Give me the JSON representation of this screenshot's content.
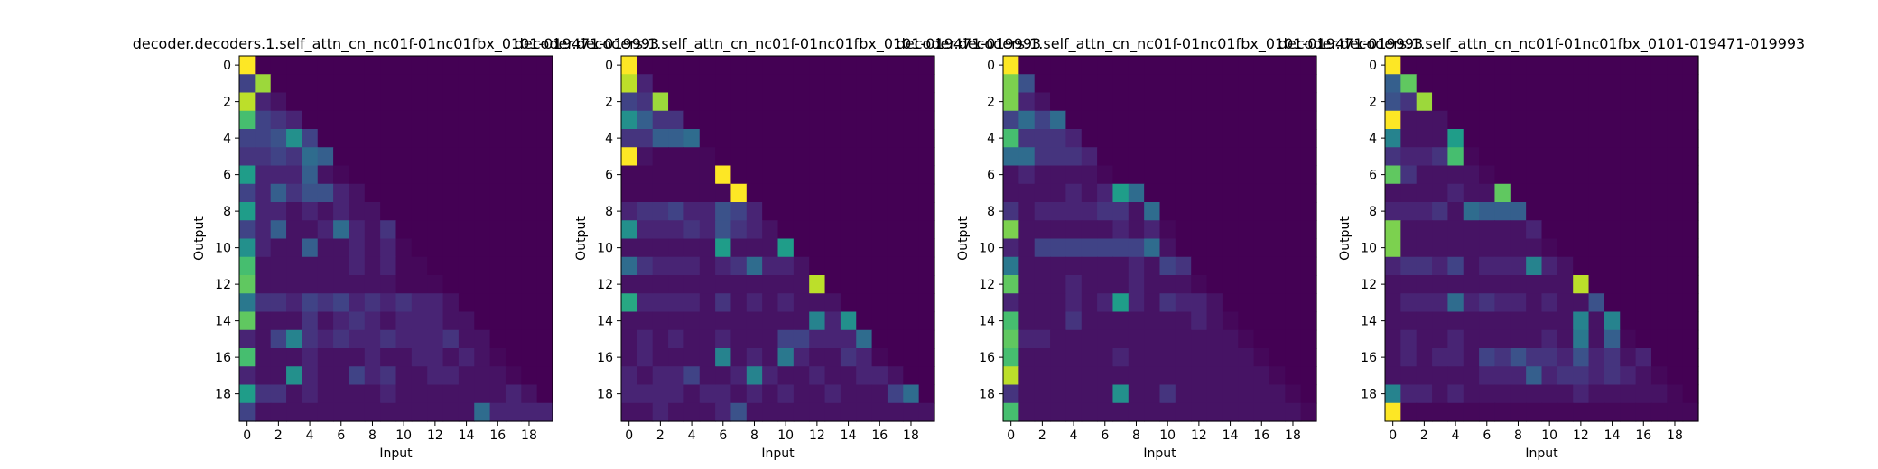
{
  "figure": {
    "colormap": "viridis",
    "background": "#ffffff"
  },
  "chart_data": [
    {
      "type": "heatmap",
      "title": "decoder.decoders.1.self_attn_cn_nc01f-01nc01fbx_0101-019471-019993",
      "xlabel": "Input",
      "ylabel": "Output",
      "x_ticks": [
        "0",
        "2",
        "4",
        "6",
        "8",
        "10",
        "12",
        "14",
        "16",
        "18"
      ],
      "y_ticks": [
        "0",
        "2",
        "4",
        "6",
        "8",
        "10",
        "12",
        "14",
        "16",
        "18"
      ],
      "xlim": [
        -0.5,
        19.5
      ],
      "ylim": [
        19.5,
        -0.5
      ],
      "value_range": [
        0,
        1
      ],
      "grid": false,
      "values": [
        [
          1.0
        ],
        [
          0.2,
          0.85
        ],
        [
          0.9,
          0.1,
          0.05
        ],
        [
          0.7,
          0.2,
          0.15,
          0.1
        ],
        [
          0.2,
          0.2,
          0.25,
          0.5,
          0.2
        ],
        [
          0.15,
          0.15,
          0.2,
          0.15,
          0.35,
          0.3
        ],
        [
          0.55,
          0.1,
          0.1,
          0.1,
          0.3,
          0.05,
          0.02
        ],
        [
          0.2,
          0.1,
          0.3,
          0.15,
          0.25,
          0.25,
          0.1,
          0.05
        ],
        [
          0.55,
          0.1,
          0.1,
          0.05,
          0.1,
          0.05,
          0.1,
          0.05,
          0.05
        ],
        [
          0.2,
          0.1,
          0.3,
          0.05,
          0.05,
          0.1,
          0.35,
          0.1,
          0.05,
          0.15
        ],
        [
          0.5,
          0.1,
          0.05,
          0.05,
          0.3,
          0.05,
          0.05,
          0.1,
          0.05,
          0.1,
          0.02
        ],
        [
          0.7,
          0.05,
          0.05,
          0.05,
          0.05,
          0.05,
          0.05,
          0.1,
          0.05,
          0.1,
          0.02,
          0.02
        ],
        [
          0.75,
          0.05,
          0.05,
          0.05,
          0.05,
          0.05,
          0.05,
          0.05,
          0.05,
          0.05,
          0.02,
          0.02,
          0.02
        ],
        [
          0.4,
          0.15,
          0.15,
          0.1,
          0.2,
          0.15,
          0.2,
          0.1,
          0.15,
          0.1,
          0.15,
          0.1,
          0.1,
          0.05
        ],
        [
          0.75,
          0.05,
          0.05,
          0.05,
          0.15,
          0.05,
          0.1,
          0.15,
          0.1,
          0.05,
          0.1,
          0.1,
          0.1,
          0.05,
          0.05
        ],
        [
          0.1,
          0.05,
          0.2,
          0.45,
          0.15,
          0.1,
          0.15,
          0.1,
          0.1,
          0.15,
          0.1,
          0.1,
          0.1,
          0.15,
          0.05,
          0.05
        ],
        [
          0.7,
          0.05,
          0.05,
          0.05,
          0.1,
          0.05,
          0.05,
          0.05,
          0.1,
          0.05,
          0.05,
          0.1,
          0.1,
          0.05,
          0.1,
          0.05,
          0.02
        ],
        [
          0.1,
          0.05,
          0.05,
          0.5,
          0.1,
          0.05,
          0.05,
          0.2,
          0.1,
          0.15,
          0.05,
          0.05,
          0.1,
          0.1,
          0.05,
          0.05,
          0.05,
          0.02
        ],
        [
          0.55,
          0.15,
          0.15,
          0.05,
          0.1,
          0.05,
          0.05,
          0.05,
          0.05,
          0.1,
          0.05,
          0.05,
          0.05,
          0.05,
          0.05,
          0.05,
          0.05,
          0.1,
          0.05
        ],
        [
          0.2,
          0.05,
          0.05,
          0.05,
          0.05,
          0.05,
          0.05,
          0.05,
          0.05,
          0.05,
          0.05,
          0.05,
          0.05,
          0.05,
          0.05,
          0.35,
          0.1,
          0.1,
          0.1,
          0.1
        ]
      ]
    },
    {
      "type": "heatmap",
      "title": "decoder.decoders.1.self_attn_cn_nc01f-01nc01fbx_0101-019471-019993",
      "xlabel": "Input",
      "ylabel": "Output",
      "x_ticks": [
        "0",
        "2",
        "4",
        "6",
        "8",
        "10",
        "12",
        "14",
        "16",
        "18"
      ],
      "y_ticks": [
        "0",
        "2",
        "4",
        "6",
        "8",
        "10",
        "12",
        "14",
        "16",
        "18"
      ],
      "xlim": [
        -0.5,
        19.5
      ],
      "ylim": [
        19.5,
        -0.5
      ],
      "value_range": [
        0,
        1
      ],
      "grid": false,
      "values": [
        [
          1.0
        ],
        [
          0.9,
          0.1
        ],
        [
          0.2,
          0.15,
          0.85
        ],
        [
          0.5,
          0.3,
          0.15,
          0.15
        ],
        [
          0.15,
          0.15,
          0.3,
          0.3,
          0.35
        ],
        [
          1.0,
          0.05,
          0.02,
          0.02,
          0.02,
          0.02
        ],
        [
          0.02,
          0.02,
          0.02,
          0.02,
          0.02,
          0.02,
          1.0
        ],
        [
          0.02,
          0.02,
          0.02,
          0.02,
          0.02,
          0.02,
          0.02,
          1.0
        ],
        [
          0.1,
          0.15,
          0.15,
          0.2,
          0.1,
          0.1,
          0.25,
          0.2,
          0.1
        ],
        [
          0.5,
          0.1,
          0.1,
          0.1,
          0.15,
          0.1,
          0.25,
          0.15,
          0.1,
          0.05
        ],
        [
          0.05,
          0.05,
          0.05,
          0.05,
          0.05,
          0.05,
          0.55,
          0.05,
          0.05,
          0.05,
          0.55
        ],
        [
          0.35,
          0.15,
          0.1,
          0.1,
          0.1,
          0.05,
          0.1,
          0.15,
          0.35,
          0.1,
          0.1,
          0.05
        ],
        [
          0.05,
          0.05,
          0.05,
          0.05,
          0.05,
          0.05,
          0.05,
          0.05,
          0.05,
          0.05,
          0.05,
          0.05,
          0.9
        ],
        [
          0.6,
          0.1,
          0.1,
          0.1,
          0.1,
          0.05,
          0.15,
          0.05,
          0.1,
          0.05,
          0.1,
          0.05,
          0.05,
          0.05
        ],
        [
          0.05,
          0.05,
          0.05,
          0.05,
          0.05,
          0.05,
          0.05,
          0.05,
          0.05,
          0.05,
          0.05,
          0.05,
          0.45,
          0.1,
          0.5
        ],
        [
          0.05,
          0.1,
          0.05,
          0.1,
          0.05,
          0.05,
          0.1,
          0.05,
          0.05,
          0.05,
          0.2,
          0.2,
          0.1,
          0.1,
          0.1,
          0.35
        ],
        [
          0.05,
          0.1,
          0.05,
          0.05,
          0.05,
          0.05,
          0.45,
          0.05,
          0.1,
          0.05,
          0.4,
          0.1,
          0.05,
          0.05,
          0.15,
          0.1,
          0.02
        ],
        [
          0.1,
          0.05,
          0.1,
          0.1,
          0.2,
          0.05,
          0.05,
          0.1,
          0.45,
          0.1,
          0.05,
          0.05,
          0.1,
          0.05,
          0.05,
          0.1,
          0.1,
          0.05
        ],
        [
          0.1,
          0.1,
          0.1,
          0.1,
          0.05,
          0.1,
          0.1,
          0.05,
          0.1,
          0.05,
          0.1,
          0.05,
          0.05,
          0.1,
          0.05,
          0.05,
          0.05,
          0.2,
          0.35
        ],
        [
          0.05,
          0.05,
          0.1,
          0.05,
          0.05,
          0.05,
          0.1,
          0.25,
          0.05,
          0.05,
          0.05,
          0.05,
          0.05,
          0.05,
          0.05,
          0.05,
          0.05,
          0.05,
          0.05,
          0.05
        ]
      ]
    },
    {
      "type": "heatmap",
      "title": "decoder.decoders.1.self_attn_cn_nc01f-01nc01fbx_0101-019471-019993",
      "xlabel": "Input",
      "ylabel": "Output",
      "x_ticks": [
        "0",
        "2",
        "4",
        "6",
        "8",
        "10",
        "12",
        "14",
        "16",
        "18"
      ],
      "y_ticks": [
        "0",
        "2",
        "4",
        "6",
        "8",
        "10",
        "12",
        "14",
        "16",
        "18"
      ],
      "xlim": [
        -0.5,
        19.5
      ],
      "ylim": [
        19.5,
        -0.5
      ],
      "value_range": [
        0,
        1
      ],
      "grid": false,
      "values": [
        [
          1.0
        ],
        [
          0.8,
          0.25
        ],
        [
          0.8,
          0.1,
          0.05
        ],
        [
          0.2,
          0.35,
          0.2,
          0.35
        ],
        [
          0.7,
          0.15,
          0.15,
          0.15,
          0.1
        ],
        [
          0.35,
          0.35,
          0.15,
          0.15,
          0.15,
          0.1
        ],
        [
          0.05,
          0.1,
          0.05,
          0.05,
          0.05,
          0.05,
          0.02
        ],
        [
          0.05,
          0.05,
          0.05,
          0.05,
          0.1,
          0.05,
          0.1,
          0.55,
          0.35
        ],
        [
          0.15,
          0.05,
          0.1,
          0.1,
          0.1,
          0.1,
          0.15,
          0.15,
          0.05,
          0.35
        ],
        [
          0.8,
          0.05,
          0.05,
          0.05,
          0.05,
          0.05,
          0.05,
          0.1,
          0.05,
          0.1,
          0.02
        ],
        [
          0.1,
          0.05,
          0.2,
          0.2,
          0.2,
          0.2,
          0.2,
          0.2,
          0.2,
          0.35,
          0.05
        ],
        [
          0.4,
          0.05,
          0.05,
          0.05,
          0.05,
          0.05,
          0.05,
          0.05,
          0.1,
          0.05,
          0.2,
          0.15
        ],
        [
          0.75,
          0.05,
          0.05,
          0.05,
          0.1,
          0.05,
          0.05,
          0.05,
          0.1,
          0.05,
          0.05,
          0.05,
          0.02
        ],
        [
          0.1,
          0.05,
          0.05,
          0.05,
          0.1,
          0.05,
          0.1,
          0.55,
          0.1,
          0.05,
          0.15,
          0.1,
          0.1,
          0.05
        ],
        [
          0.7,
          0.05,
          0.05,
          0.05,
          0.15,
          0.05,
          0.05,
          0.05,
          0.05,
          0.05,
          0.05,
          0.05,
          0.1,
          0.05,
          0.02
        ],
        [
          0.75,
          0.1,
          0.1,
          0.05,
          0.05,
          0.05,
          0.05,
          0.05,
          0.05,
          0.05,
          0.05,
          0.05,
          0.05,
          0.05,
          0.05,
          0.02
        ],
        [
          0.7,
          0.05,
          0.05,
          0.05,
          0.05,
          0.05,
          0.05,
          0.1,
          0.05,
          0.05,
          0.05,
          0.05,
          0.05,
          0.05,
          0.05,
          0.05,
          0.02
        ],
        [
          0.9,
          0.05,
          0.05,
          0.05,
          0.05,
          0.05,
          0.05,
          0.05,
          0.05,
          0.05,
          0.05,
          0.05,
          0.05,
          0.05,
          0.05,
          0.05,
          0.05,
          0.02
        ],
        [
          0.15,
          0.05,
          0.05,
          0.05,
          0.05,
          0.05,
          0.05,
          0.5,
          0.05,
          0.05,
          0.15,
          0.05,
          0.05,
          0.05,
          0.05,
          0.05,
          0.05,
          0.05,
          0.02
        ],
        [
          0.7,
          0.05,
          0.05,
          0.05,
          0.05,
          0.05,
          0.05,
          0.05,
          0.05,
          0.05,
          0.05,
          0.05,
          0.05,
          0.05,
          0.05,
          0.05,
          0.05,
          0.05,
          0.05,
          0.02
        ]
      ]
    },
    {
      "type": "heatmap",
      "title": "decoder.decoders.1.self_attn_cn_nc01f-01nc01fbx_0101-019471-019993",
      "xlabel": "Input",
      "ylabel": "Output",
      "x_ticks": [
        "0",
        "2",
        "4",
        "6",
        "8",
        "10",
        "12",
        "14",
        "16",
        "18"
      ],
      "y_ticks": [
        "0",
        "2",
        "4",
        "6",
        "8",
        "10",
        "12",
        "14",
        "16",
        "18"
      ],
      "xlim": [
        -0.5,
        19.5
      ],
      "ylim": [
        19.5,
        -0.5
      ],
      "value_range": [
        0,
        1
      ],
      "grid": false,
      "values": [
        [
          1.0
        ],
        [
          0.3,
          0.75
        ],
        [
          0.25,
          0.15,
          0.85
        ],
        [
          1.0,
          0.05,
          0.05,
          0.05
        ],
        [
          0.45,
          0.05,
          0.05,
          0.05,
          0.55
        ],
        [
          0.15,
          0.1,
          0.1,
          0.15,
          0.7,
          0.02
        ],
        [
          0.75,
          0.15,
          0.05,
          0.05,
          0.05,
          0.05,
          0.02
        ],
        [
          0.05,
          0.05,
          0.05,
          0.05,
          0.1,
          0.05,
          0.05,
          0.75
        ],
        [
          0.1,
          0.1,
          0.1,
          0.15,
          0.05,
          0.35,
          0.3,
          0.3,
          0.3
        ],
        [
          0.8,
          0.05,
          0.05,
          0.05,
          0.05,
          0.05,
          0.05,
          0.05,
          0.05,
          0.1
        ],
        [
          0.8,
          0.05,
          0.05,
          0.05,
          0.05,
          0.05,
          0.05,
          0.05,
          0.05,
          0.05,
          0.02
        ],
        [
          0.1,
          0.15,
          0.15,
          0.1,
          0.2,
          0.05,
          0.1,
          0.1,
          0.1,
          0.45,
          0.1,
          0.05
        ],
        [
          0.05,
          0.05,
          0.05,
          0.05,
          0.05,
          0.05,
          0.05,
          0.05,
          0.05,
          0.05,
          0.05,
          0.05,
          0.9
        ],
        [
          0.05,
          0.1,
          0.1,
          0.1,
          0.35,
          0.1,
          0.15,
          0.1,
          0.1,
          0.05,
          0.1,
          0.05,
          0.05,
          0.25
        ],
        [
          0.05,
          0.05,
          0.05,
          0.05,
          0.05,
          0.05,
          0.05,
          0.05,
          0.05,
          0.05,
          0.05,
          0.05,
          0.45,
          0.05,
          0.45
        ],
        [
          0.05,
          0.1,
          0.05,
          0.05,
          0.1,
          0.05,
          0.05,
          0.05,
          0.05,
          0.05,
          0.1,
          0.05,
          0.4,
          0.05,
          0.3,
          0.02
        ],
        [
          0.05,
          0.1,
          0.05,
          0.1,
          0.1,
          0.05,
          0.2,
          0.15,
          0.25,
          0.15,
          0.15,
          0.1,
          0.25,
          0.1,
          0.15,
          0.05,
          0.1
        ],
        [
          0.05,
          0.05,
          0.05,
          0.05,
          0.05,
          0.05,
          0.1,
          0.1,
          0.1,
          0.3,
          0.1,
          0.15,
          0.15,
          0.1,
          0.15,
          0.1,
          0.05,
          0.02
        ],
        [
          0.45,
          0.1,
          0.1,
          0.05,
          0.1,
          0.05,
          0.05,
          0.05,
          0.05,
          0.05,
          0.05,
          0.05,
          0.1,
          0.05,
          0.05,
          0.05,
          0.05,
          0.05,
          0.02
        ],
        [
          1.0,
          0.02,
          0.02,
          0.02,
          0.02,
          0.02,
          0.02,
          0.02,
          0.02,
          0.02,
          0.02,
          0.02,
          0.02,
          0.02,
          0.02,
          0.02,
          0.02,
          0.02,
          0.02,
          0.02
        ]
      ]
    }
  ]
}
